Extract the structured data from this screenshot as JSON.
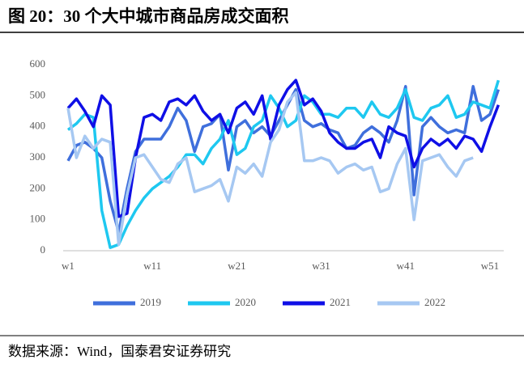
{
  "chart_data": {
    "type": "line",
    "title": "图 20：30 个大中城市商品房成交面积",
    "source": "数据来源：Wind，国泰君安证券研究",
    "categories": [
      "w1",
      null,
      null,
      null,
      null,
      null,
      null,
      null,
      null,
      null,
      "w11",
      null,
      null,
      null,
      null,
      null,
      null,
      null,
      null,
      null,
      "w21",
      null,
      null,
      null,
      null,
      null,
      null,
      null,
      null,
      null,
      "w31",
      null,
      null,
      null,
      null,
      null,
      null,
      null,
      null,
      null,
      "w41",
      null,
      null,
      null,
      null,
      null,
      null,
      null,
      null,
      null,
      "w51",
      null
    ],
    "ylim": [
      0,
      600
    ],
    "yticks": [
      0,
      100,
      200,
      300,
      400,
      500,
      600
    ],
    "grid": false,
    "legend": "bottom",
    "series": [
      {
        "name": "2019",
        "color": "#3f6fdc",
        "values": [
          290,
          340,
          350,
          330,
          300,
          160,
          60,
          200,
          320,
          360,
          360,
          360,
          400,
          460,
          420,
          320,
          400,
          410,
          440,
          260,
          400,
          420,
          380,
          400,
          370,
          420,
          470,
          520,
          420,
          400,
          410,
          390,
          380,
          330,
          340,
          380,
          400,
          380,
          350,
          420,
          530,
          180,
          400,
          430,
          400,
          380,
          390,
          380,
          530,
          420,
          440,
          520
        ]
      },
      {
        "name": "2020",
        "color": "#1ec8f0",
        "values": [
          390,
          410,
          440,
          430,
          130,
          10,
          20,
          80,
          130,
          170,
          200,
          220,
          240,
          270,
          310,
          310,
          280,
          330,
          360,
          420,
          310,
          330,
          400,
          420,
          500,
          460,
          400,
          420,
          500,
          480,
          440,
          440,
          430,
          460,
          460,
          430,
          480,
          440,
          430,
          460,
          520,
          430,
          420,
          460,
          470,
          500,
          430,
          440,
          480,
          470,
          460,
          550
        ]
      },
      {
        "name": "2021",
        "color": "#0f0fe6",
        "values": [
          460,
          490,
          450,
          400,
          500,
          470,
          110,
          120,
          300,
          430,
          440,
          420,
          480,
          490,
          470,
          500,
          450,
          420,
          440,
          380,
          460,
          480,
          440,
          500,
          360,
          470,
          520,
          550,
          470,
          490,
          450,
          380,
          350,
          330,
          330,
          350,
          360,
          300,
          400,
          380,
          370,
          270,
          330,
          360,
          340,
          360,
          330,
          370,
          360,
          320,
          400,
          470
        ]
      },
      {
        "name": "2022",
        "color": "#a6c8f2",
        "values": [
          460,
          300,
          370,
          330,
          360,
          350,
          20,
          180,
          300,
          310,
          270,
          230,
          220,
          280,
          300,
          190,
          200,
          210,
          230,
          160,
          270,
          250,
          280,
          240,
          350,
          390,
          480,
          510,
          290,
          290,
          300,
          290,
          250,
          270,
          280,
          260,
          270,
          190,
          200,
          280,
          330,
          100,
          290,
          300,
          310,
          270,
          240,
          290,
          300,
          null,
          null,
          null
        ]
      }
    ]
  }
}
